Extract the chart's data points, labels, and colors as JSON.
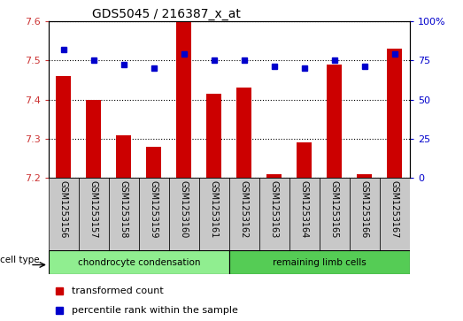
{
  "title": "GDS5045 / 216387_x_at",
  "samples": [
    "GSM1253156",
    "GSM1253157",
    "GSM1253158",
    "GSM1253159",
    "GSM1253160",
    "GSM1253161",
    "GSM1253162",
    "GSM1253163",
    "GSM1253164",
    "GSM1253165",
    "GSM1253166",
    "GSM1253167"
  ],
  "transformed_count": [
    7.46,
    7.4,
    7.31,
    7.28,
    7.6,
    7.415,
    7.43,
    7.21,
    7.29,
    7.49,
    7.21,
    7.53
  ],
  "percentile_rank": [
    82,
    75,
    72,
    70,
    79,
    75,
    75,
    71,
    70,
    75,
    71,
    79
  ],
  "ylim_left": [
    7.2,
    7.6
  ],
  "ylim_right": [
    0,
    100
  ],
  "yticks_left": [
    7.2,
    7.3,
    7.4,
    7.5,
    7.6
  ],
  "ytick_labels_left": [
    "7.2",
    "7.3",
    "7.4",
    "7.5",
    "7.6"
  ],
  "yticks_right": [
    0,
    25,
    50,
    75,
    100
  ],
  "ytick_labels_right": [
    "0",
    "25",
    "50",
    "75",
    "100%"
  ],
  "bar_color": "#cc0000",
  "dot_color": "#0000cc",
  "cell_types": [
    {
      "label": "chondrocyte condensation",
      "start": 0,
      "end": 6,
      "color": "#90ee90"
    },
    {
      "label": "remaining limb cells",
      "start": 6,
      "end": 12,
      "color": "#55cc55"
    }
  ],
  "cell_type_label": "cell type",
  "legend_bar_label": "transformed count",
  "legend_dot_label": "percentile rank within the sample",
  "xticklabel_bg": "#c8c8c8"
}
